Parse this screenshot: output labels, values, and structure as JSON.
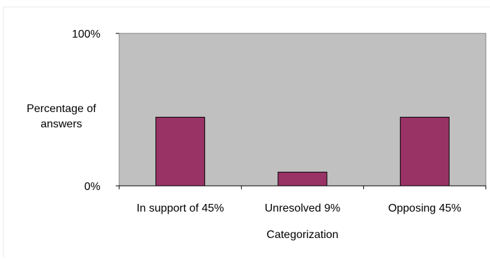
{
  "chart_data": {
    "type": "bar",
    "categories": [
      "In support of 45%",
      "Unresolved 9%",
      "Opposing 45%"
    ],
    "values": [
      45,
      9,
      45
    ],
    "title": "",
    "xlabel": "Categorization",
    "ylabel": [
      "Percentage of",
      "answers"
    ],
    "ylim": [
      0,
      100
    ],
    "yticks": [
      "0%",
      "100%"
    ],
    "grid": false,
    "legend": "none",
    "colors": {
      "bar_fill": "#993366",
      "bar_stroke": "#000000",
      "plot_background": "#c0c0c0",
      "plot_border": "#808080",
      "axis": "#000000"
    }
  }
}
